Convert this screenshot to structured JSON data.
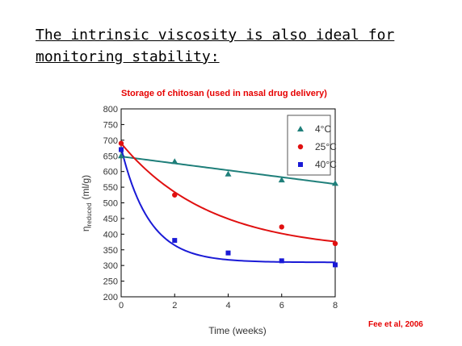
{
  "slide": {
    "heading": "The intrinsic viscosity is also ideal for monitoring stability:",
    "subtitle": "Storage of chitosan (used in nasal drug delivery)",
    "citation": "Fee et al, 2006"
  },
  "chart_data": {
    "type": "scatter",
    "title": "",
    "xlabel": "Time (weeks)",
    "ylabel": "ηreduced (ml/g)",
    "ylabel_symbol": "η",
    "ylabel_subscript": "reduced",
    "ylabel_unit": "(ml/g)",
    "xlim": [
      0,
      8
    ],
    "ylim": [
      200,
      800
    ],
    "x_ticks": [
      0,
      2,
      4,
      6,
      8
    ],
    "y_ticks": [
      200,
      250,
      300,
      350,
      400,
      450,
      500,
      550,
      600,
      650,
      700,
      750,
      800
    ],
    "grid": false,
    "legend_position": "top-right",
    "series": [
      {
        "name": "4°C",
        "color": "#1f7f7a",
        "marker": "triangle",
        "x": [
          0,
          2,
          4,
          6,
          8
        ],
        "y": [
          650,
          632,
          592,
          573,
          562
        ],
        "fit": "linear",
        "fit_start": 648,
        "fit_end": 560
      },
      {
        "name": "25°C",
        "color": "#e01010",
        "marker": "circle",
        "x": [
          0,
          2,
          4,
          6,
          8
        ],
        "y": [
          690,
          525,
          null,
          423,
          370
        ],
        "fit": "exp",
        "fit_y0": 690,
        "fit_inf": 345,
        "fit_k": 0.3
      },
      {
        "name": "40°C",
        "color": "#1a1ad6",
        "marker": "square",
        "x": [
          0,
          2,
          4,
          6,
          8
        ],
        "y": [
          670,
          380,
          340,
          315,
          302
        ],
        "fit": "exp",
        "fit_y0": 675,
        "fit_inf": 310,
        "fit_k": 0.95
      }
    ]
  }
}
